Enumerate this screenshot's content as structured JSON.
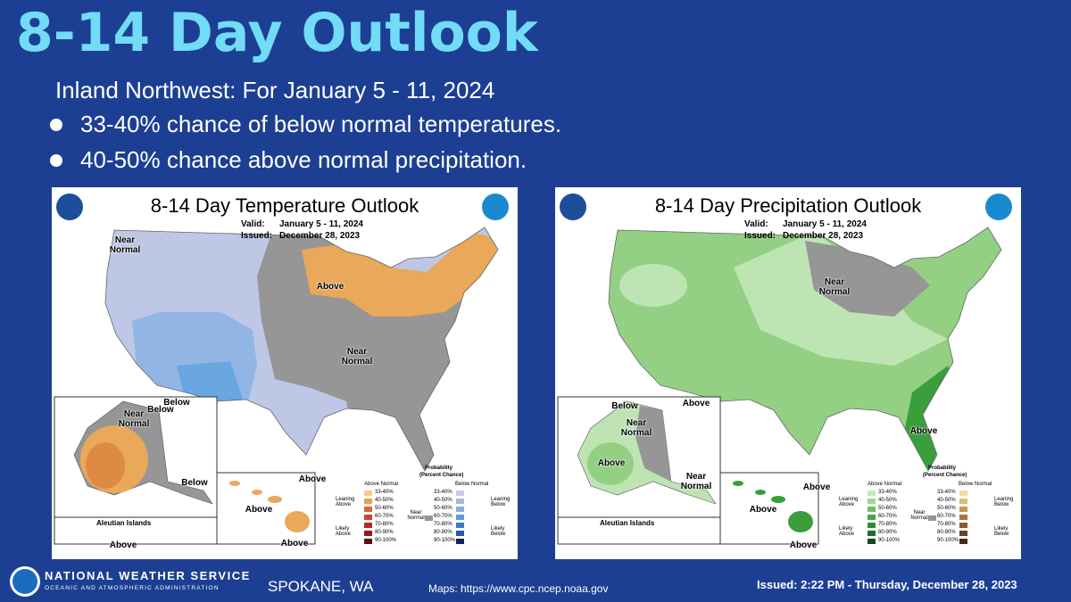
{
  "header": {
    "title": "8-14 Day Outlook",
    "subtitle": "Inland Northwest: For January 5 - 11, 2024",
    "bullets": [
      "33-40% chance of below normal temperatures.",
      "40-50% chance above normal precipitation."
    ]
  },
  "maps": [
    {
      "title": "8-14 Day Temperature Outlook",
      "valid_label": "Valid:",
      "valid": "January 5 - 11, 2024",
      "issued_label": "Issued:",
      "issued": "December 28, 2023",
      "regions": [
        {
          "label": "Near Normal"
        },
        {
          "label": "Above"
        },
        {
          "label": "Near Normal"
        },
        {
          "label": "Below"
        },
        {
          "label": "Near Normal"
        },
        {
          "label": "Below"
        },
        {
          "label": "Below"
        },
        {
          "label": "Above"
        },
        {
          "label": "Above"
        },
        {
          "label": "Above"
        },
        {
          "label": "Above"
        }
      ],
      "inset_label": "Aleutian Islands",
      "legend": {
        "title": "Probability",
        "subtitle": "(Percent Chance)",
        "above_header": "Above Normal",
        "below_header": "Below Normal",
        "above_levels": [
          "33-40%",
          "40-50%",
          "50-60%",
          "60-70%",
          "70-80%",
          "80-90%",
          "90-100%"
        ],
        "below_levels": [
          "33-40%",
          "40-50%",
          "50-60%",
          "60-70%",
          "70-80%",
          "80-90%",
          "90-100%"
        ],
        "leaning_above": "Leaning Above",
        "likely_above": "Likely Above",
        "near": "Near Normal",
        "leaning_below": "Leaning Below",
        "likely_below": "Likely Below"
      }
    },
    {
      "title": "8-14 Day Precipitation Outlook",
      "valid_label": "Valid:",
      "valid": "January 5 - 11, 2024",
      "issued_label": "Issued:",
      "issued": "December 28, 2023",
      "regions": [
        {
          "label": "Near Normal"
        },
        {
          "label": "Above"
        },
        {
          "label": "Above"
        },
        {
          "label": "Below"
        },
        {
          "label": "Near Normal"
        },
        {
          "label": "Above"
        },
        {
          "label": "Near Normal"
        },
        {
          "label": "Above"
        },
        {
          "label": "Above"
        },
        {
          "label": "Above"
        }
      ],
      "inset_label": "Aleutian Islands",
      "legend": {
        "title": "Probability",
        "subtitle": "(Percent Chance)",
        "above_header": "Above Normal",
        "below_header": "Below Normal",
        "above_levels": [
          "33-40%",
          "40-50%",
          "50-60%",
          "60-70%",
          "70-80%",
          "80-90%",
          "90-100%"
        ],
        "below_levels": [
          "33-40%",
          "40-50%",
          "50-60%",
          "60-70%",
          "70-80%",
          "80-90%",
          "90-100%"
        ],
        "leaning_above": "Leaning Above",
        "likely_above": "Likely Above",
        "near": "Near Normal",
        "leaning_below": "Leaning Below",
        "likely_below": "Likely Below"
      }
    }
  ],
  "footer": {
    "agency": "NATIONAL WEATHER SERVICE",
    "agency_sub": "OCEANIC AND ATMOSPHERIC ADMINISTRATION",
    "office": "SPOKANE, WA",
    "maps": "Maps: https://www.cpc.ncep.noaa.gov",
    "issued": "Issued: 2:22 PM - Thursday, December 28, 2023"
  }
}
